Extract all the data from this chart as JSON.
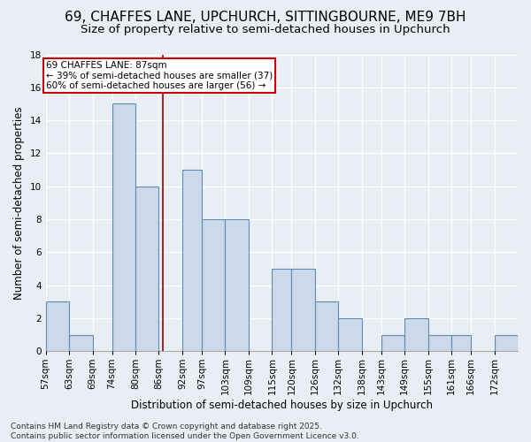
{
  "title_line1": "69, CHAFFES LANE, UPCHURCH, SITTINGBOURNE, ME9 7BH",
  "title_line2": "Size of property relative to semi-detached houses in Upchurch",
  "xlabel": "Distribution of semi-detached houses by size in Upchurch",
  "ylabel": "Number of semi-detached properties",
  "footer": "Contains HM Land Registry data © Crown copyright and database right 2025.\nContains public sector information licensed under the Open Government Licence v3.0.",
  "bin_labels": [
    "57sqm",
    "63sqm",
    "69sqm",
    "74sqm",
    "80sqm",
    "86sqm",
    "92sqm",
    "97sqm",
    "103sqm",
    "109sqm",
    "115sqm",
    "120sqm",
    "126sqm",
    "132sqm",
    "138sqm",
    "143sqm",
    "149sqm",
    "155sqm",
    "161sqm",
    "166sqm",
    "172sqm"
  ],
  "bin_edges": [
    57,
    63,
    69,
    74,
    80,
    86,
    92,
    97,
    103,
    109,
    115,
    120,
    126,
    132,
    138,
    143,
    149,
    155,
    161,
    166,
    172,
    178
  ],
  "counts": [
    3,
    1,
    0,
    15,
    10,
    0,
    11,
    8,
    8,
    0,
    5,
    5,
    3,
    2,
    0,
    1,
    2,
    1,
    1,
    0,
    1
  ],
  "bar_color": "#ccd9e8",
  "bar_edge_color": "#5b8db8",
  "property_size": 87,
  "property_line_color": "#990000",
  "annotation_text": "69 CHAFFES LANE: 87sqm\n← 39% of semi-detached houses are smaller (37)\n60% of semi-detached houses are larger (56) →",
  "annotation_box_color": "#ffffff",
  "annotation_box_edge": "#cc0000",
  "ylim": [
    0,
    18
  ],
  "yticks": [
    0,
    2,
    4,
    6,
    8,
    10,
    12,
    14,
    16,
    18
  ],
  "background_color": "#e8eef4",
  "grid_color": "#ffffff",
  "title_fontsize": 11,
  "subtitle_fontsize": 9.5,
  "label_fontsize": 8.5,
  "tick_fontsize": 7.5,
  "footer_fontsize": 6.5,
  "annotation_fontsize": 7.5
}
